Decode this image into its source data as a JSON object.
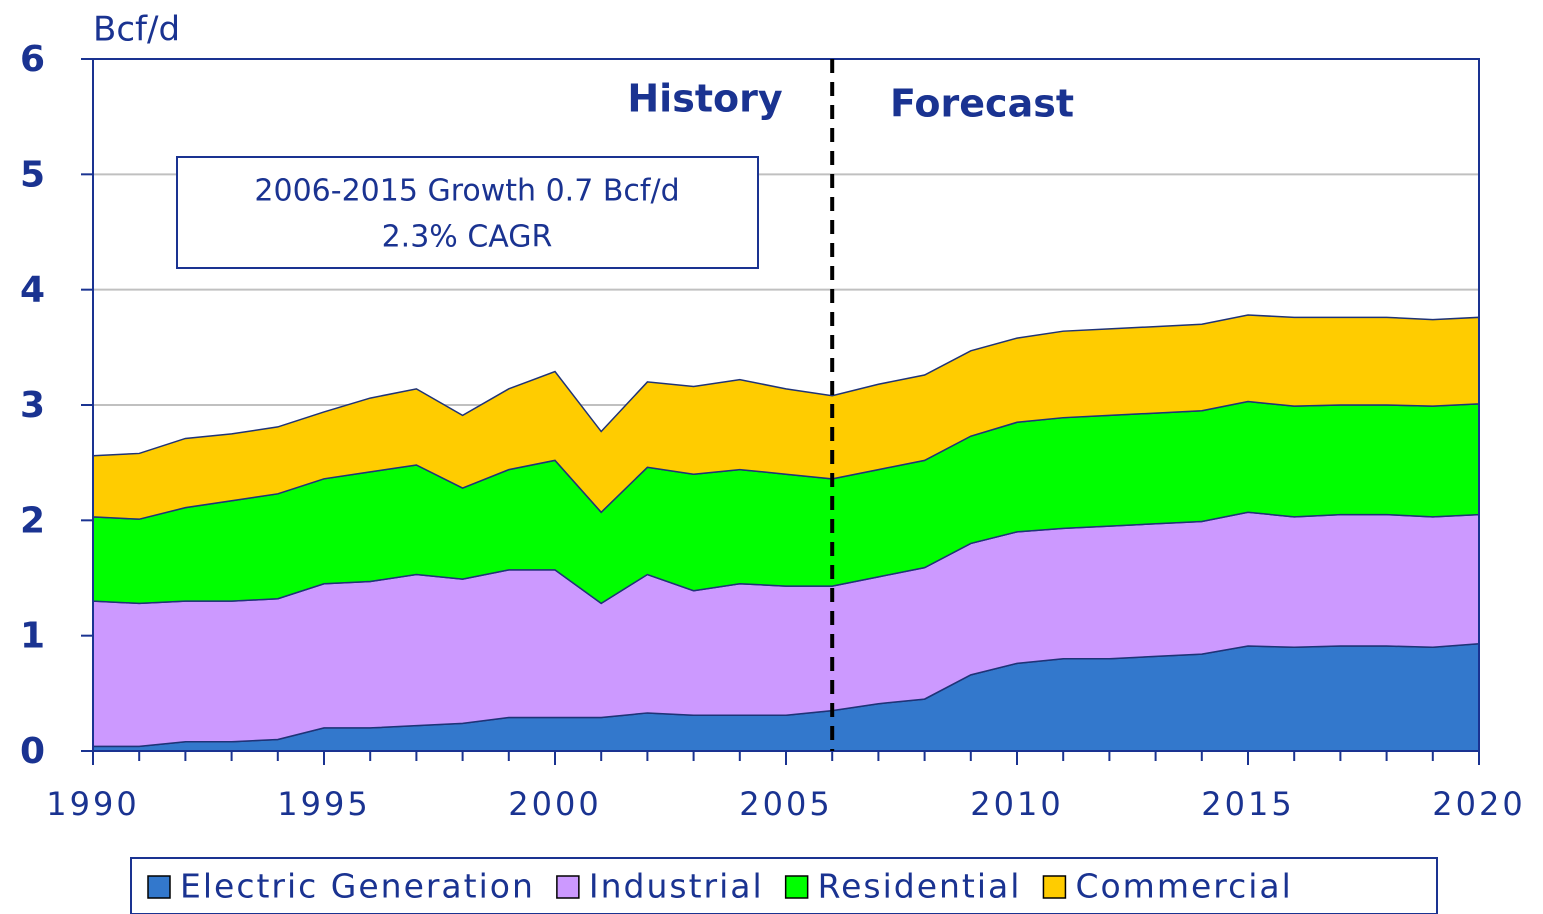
{
  "chart_data": {
    "type": "stacked_area",
    "y_label": "Bcf/d",
    "x": [
      1990,
      1991,
      1992,
      1993,
      1994,
      1995,
      1996,
      1997,
      1998,
      1999,
      2000,
      2001,
      2002,
      2003,
      2004,
      2005,
      2006,
      2007,
      2008,
      2009,
      2010,
      2011,
      2012,
      2013,
      2014,
      2015,
      2016,
      2017,
      2018,
      2019,
      2020
    ],
    "series": [
      {
        "name": "Electric Generation",
        "color": "#3378cc",
        "values": [
          0.04,
          0.04,
          0.08,
          0.08,
          0.1,
          0.2,
          0.2,
          0.22,
          0.24,
          0.29,
          0.29,
          0.29,
          0.33,
          0.31,
          0.31,
          0.31,
          0.35,
          0.41,
          0.45,
          0.66,
          0.76,
          0.8,
          0.8,
          0.82,
          0.84,
          0.91,
          0.9,
          0.91,
          0.91,
          0.9,
          0.93
        ]
      },
      {
        "name": "Industrial",
        "color": "#cc99ff",
        "values": [
          1.26,
          1.24,
          1.22,
          1.22,
          1.22,
          1.25,
          1.27,
          1.31,
          1.25,
          1.28,
          1.28,
          0.99,
          1.2,
          1.08,
          1.14,
          1.12,
          1.08,
          1.1,
          1.14,
          1.14,
          1.14,
          1.13,
          1.15,
          1.15,
          1.15,
          1.16,
          1.13,
          1.14,
          1.14,
          1.13,
          1.12
        ]
      },
      {
        "name": "Residential",
        "color": "#00ff00",
        "values": [
          0.73,
          0.73,
          0.81,
          0.87,
          0.91,
          0.91,
          0.95,
          0.95,
          0.79,
          0.87,
          0.95,
          0.79,
          0.93,
          1.01,
          0.99,
          0.97,
          0.93,
          0.93,
          0.93,
          0.93,
          0.95,
          0.96,
          0.96,
          0.96,
          0.96,
          0.96,
          0.96,
          0.95,
          0.95,
          0.96,
          0.96
        ]
      },
      {
        "name": "Commercial",
        "color": "#ffcc00",
        "values": [
          0.53,
          0.57,
          0.6,
          0.58,
          0.58,
          0.58,
          0.64,
          0.66,
          0.63,
          0.7,
          0.77,
          0.7,
          0.74,
          0.76,
          0.78,
          0.74,
          0.72,
          0.74,
          0.74,
          0.74,
          0.73,
          0.75,
          0.75,
          0.75,
          0.75,
          0.75,
          0.77,
          0.76,
          0.76,
          0.75,
          0.75
        ]
      }
    ],
    "xlim": [
      1990,
      2020
    ],
    "xticks": [
      1990,
      1995,
      2000,
      2005,
      2010,
      2015,
      2020
    ],
    "ylim": [
      0,
      6
    ],
    "yticks": [
      0,
      1,
      2,
      3,
      4,
      5,
      6
    ],
    "grid": true,
    "divider_x": 2006,
    "annotations": {
      "history": "History",
      "forecast": "Forecast",
      "box": [
        "2006-2015 Growth 0.7 Bcf/d",
        "2.3% CAGR"
      ]
    },
    "legend": "bottom"
  }
}
